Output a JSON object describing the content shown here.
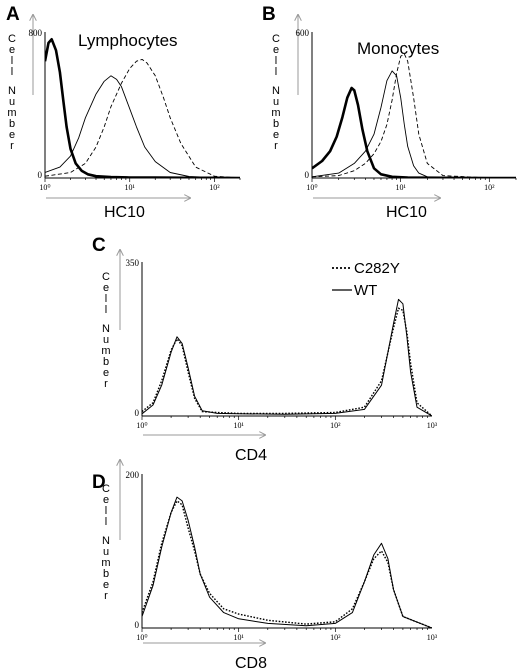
{
  "figure": {
    "background": "#ffffff",
    "ink": "#000000",
    "arrow_color": "#9a9a9a"
  },
  "legend": {
    "items": [
      {
        "label": "C282Y",
        "style": "dotted"
      },
      {
        "label": "WT",
        "style": "solid"
      }
    ]
  },
  "chart_data": [
    {
      "id": "A",
      "type": "line",
      "panel_label": "A",
      "title": "Lymphocytes",
      "xlabel": "HC10",
      "ylabel": "Cell Number",
      "x_scale": "log",
      "xlim": [
        1,
        200
      ],
      "xticks": [
        [
          "10⁰",
          1
        ],
        [
          "10¹",
          10
        ],
        [
          "10²",
          100
        ]
      ],
      "ylim": [
        0,
        800
      ],
      "ymax_label": "800",
      "ymin_label": "0",
      "grid": false,
      "series": [
        {
          "style": "thick",
          "x": [
            1.0,
            1.1,
            1.2,
            1.35,
            1.5,
            1.65,
            1.8,
            2.0,
            2.3,
            2.7,
            3.2,
            4.0,
            6,
            10,
            20,
            50,
            100,
            200
          ],
          "y": [
            640,
            740,
            760,
            700,
            580,
            420,
            280,
            160,
            80,
            40,
            20,
            10,
            5,
            3,
            2,
            1,
            1,
            0
          ]
        },
        {
          "style": "thin",
          "x": [
            1.0,
            1.5,
            2.0,
            2.5,
            3.0,
            4.0,
            5.0,
            6.0,
            7.0,
            8.0,
            10,
            12,
            15,
            20,
            30,
            50,
            100,
            200
          ],
          "y": [
            30,
            60,
            120,
            220,
            330,
            460,
            530,
            560,
            540,
            500,
            380,
            280,
            170,
            90,
            30,
            8,
            2,
            0
          ]
        },
        {
          "style": "dashed",
          "x": [
            1.0,
            2.0,
            3.0,
            4.0,
            5.0,
            6.0,
            8.0,
            10,
            12,
            14,
            16,
            20,
            25,
            30,
            40,
            60,
            100,
            200
          ],
          "y": [
            10,
            30,
            80,
            170,
            280,
            390,
            520,
            600,
            640,
            650,
            630,
            560,
            440,
            330,
            190,
            60,
            10,
            0
          ]
        }
      ]
    },
    {
      "id": "B",
      "type": "line",
      "panel_label": "B",
      "title": "Monocytes",
      "xlabel": "HC10",
      "ylabel": "Cell Number",
      "x_scale": "log",
      "xlim": [
        1,
        200
      ],
      "xticks": [
        [
          "10⁰",
          1
        ],
        [
          "10¹",
          10
        ],
        [
          "10²",
          100
        ]
      ],
      "ylim": [
        0,
        600
      ],
      "ymax_label": "600",
      "ymin_label": "0",
      "grid": false,
      "series": [
        {
          "style": "thick",
          "x": [
            1.0,
            1.3,
            1.6,
            1.9,
            2.2,
            2.5,
            2.8,
            3.0,
            3.3,
            3.7,
            4.2,
            5.0,
            6.0,
            8.0,
            12,
            30,
            100,
            200
          ],
          "y": [
            40,
            70,
            110,
            170,
            250,
            330,
            370,
            360,
            300,
            200,
            110,
            40,
            15,
            5,
            2,
            1,
            0,
            0
          ]
        },
        {
          "style": "thin",
          "x": [
            1.0,
            2.0,
            3.0,
            4.0,
            5.0,
            6.0,
            7.0,
            8.0,
            9.0,
            10,
            11,
            12,
            14,
            16,
            20,
            30,
            100,
            200
          ],
          "y": [
            5,
            20,
            60,
            110,
            180,
            290,
            400,
            440,
            420,
            330,
            220,
            130,
            50,
            20,
            5,
            1,
            0,
            0
          ]
        },
        {
          "style": "dashed",
          "x": [
            1.0,
            2.0,
            3.0,
            4.0,
            5.0,
            6.0,
            7.0,
            8.0,
            9.0,
            10,
            11,
            12,
            14,
            16,
            20,
            30,
            100,
            200
          ],
          "y": [
            5,
            10,
            30,
            60,
            100,
            150,
            220,
            320,
            430,
            500,
            510,
            480,
            330,
            180,
            60,
            10,
            0,
            0
          ]
        }
      ]
    },
    {
      "id": "C",
      "type": "line",
      "panel_label": "C",
      "xlabel": "CD4",
      "ylabel": "Cell Number",
      "x_scale": "log",
      "xlim": [
        1,
        1000
      ],
      "xticks": [
        [
          "10⁰",
          1
        ],
        [
          "10¹",
          10
        ],
        [
          "10²",
          100
        ],
        [
          "10³",
          1000
        ]
      ],
      "ylim": [
        0,
        350
      ],
      "ymax_label": "350",
      "ymin_label": "0",
      "grid": false,
      "legend_position": "top-right",
      "series": [
        {
          "name": "C282Y",
          "style": "dotted",
          "x": [
            1.0,
            1.3,
            1.6,
            2.0,
            2.3,
            2.6,
            3.0,
            3.5,
            4.2,
            6,
            10,
            30,
            100,
            200,
            300,
            400,
            450,
            500,
            550,
            600,
            700,
            1000
          ],
          "y": [
            10,
            30,
            80,
            150,
            175,
            160,
            100,
            40,
            10,
            8,
            6,
            6,
            8,
            20,
            80,
            200,
            245,
            240,
            190,
            120,
            30,
            0
          ]
        },
        {
          "name": "WT",
          "style": "solid",
          "x": [
            1.0,
            1.3,
            1.6,
            2.0,
            2.3,
            2.6,
            3.0,
            3.5,
            4.2,
            6,
            10,
            30,
            100,
            200,
            300,
            400,
            450,
            500,
            550,
            600,
            700,
            1000
          ],
          "y": [
            5,
            25,
            70,
            145,
            180,
            165,
            110,
            45,
            12,
            6,
            5,
            4,
            6,
            15,
            70,
            210,
            265,
            255,
            180,
            100,
            20,
            0
          ]
        }
      ]
    },
    {
      "id": "D",
      "type": "line",
      "panel_label": "D",
      "xlabel": "CD8",
      "ylabel": "Cell Number",
      "x_scale": "log",
      "xlim": [
        1,
        1000
      ],
      "xticks": [
        [
          "10⁰",
          1
        ],
        [
          "10¹",
          10
        ],
        [
          "10²",
          100
        ],
        [
          "10³",
          1000
        ]
      ],
      "ylim": [
        0,
        200
      ],
      "ymax_label": "200",
      "ymin_label": "0",
      "grid": false,
      "series": [
        {
          "name": "C282Y",
          "style": "dotted",
          "x": [
            1.0,
            1.3,
            1.6,
            2.0,
            2.3,
            2.6,
            3.0,
            3.5,
            4.0,
            5.0,
            7.0,
            10,
            20,
            50,
            100,
            150,
            200,
            250,
            300,
            350,
            400,
            500,
            1000
          ],
          "y": [
            20,
            60,
            110,
            150,
            165,
            160,
            130,
            100,
            70,
            45,
            25,
            18,
            10,
            5,
            8,
            25,
            60,
            90,
            100,
            85,
            50,
            15,
            0
          ]
        },
        {
          "name": "WT",
          "style": "solid",
          "x": [
            1.0,
            1.3,
            1.6,
            2.0,
            2.3,
            2.6,
            3.0,
            3.5,
            4.0,
            5.0,
            7.0,
            10,
            20,
            50,
            100,
            150,
            200,
            250,
            300,
            350,
            400,
            500,
            1000
          ],
          "y": [
            15,
            55,
            105,
            150,
            170,
            165,
            140,
            105,
            70,
            40,
            20,
            12,
            6,
            3,
            6,
            20,
            60,
            95,
            110,
            90,
            50,
            15,
            0
          ]
        }
      ]
    }
  ]
}
